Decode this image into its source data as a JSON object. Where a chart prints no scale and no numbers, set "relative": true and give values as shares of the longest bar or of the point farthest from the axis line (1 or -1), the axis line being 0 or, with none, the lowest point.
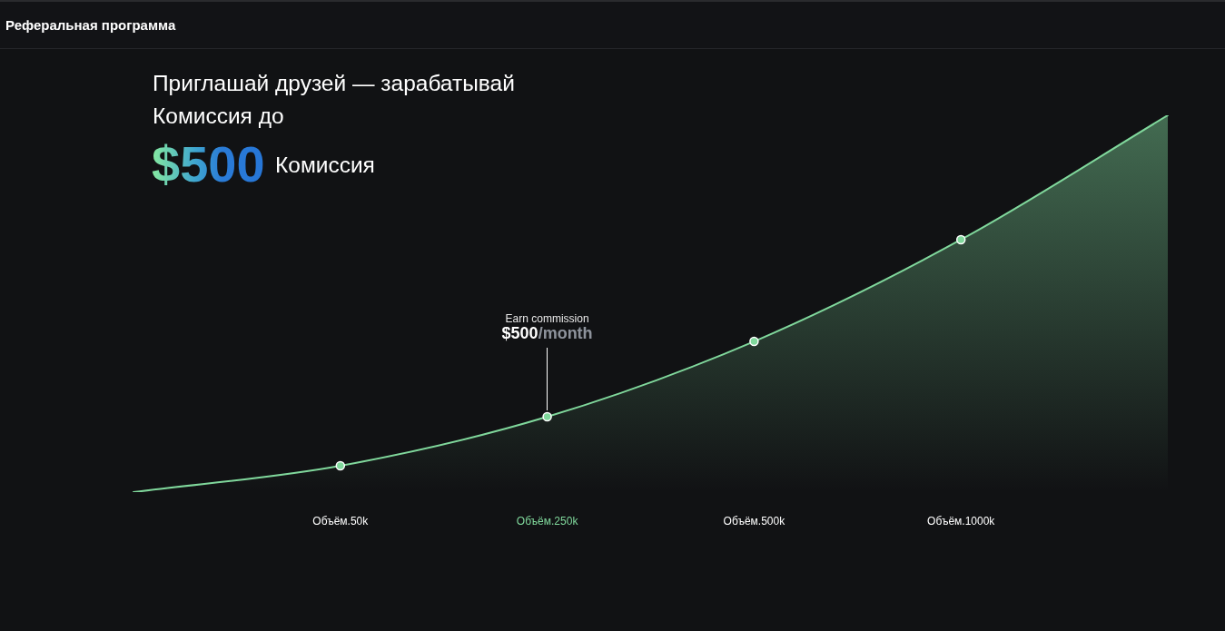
{
  "chart_data": {
    "type": "area",
    "title": "Реферальная программа",
    "subtitle": "Приглашай друзей — зарабатывай",
    "annotations": [
      "Комиссия до",
      "$500",
      "Комиссия",
      "Earn commission",
      {
        "text": "$500/month",
        "x": "Объём.250k",
        "y": 0.2
      }
    ],
    "categories": [
      null,
      "Объём.50k",
      "Объём.250k",
      "Объём.500k",
      "Объём.1000k",
      null
    ],
    "values": [
      0,
      0.07,
      0.2,
      0.4,
      0.67,
      1
    ],
    "color": "#80d89c",
    "relative": true,
    "grid": false,
    "marker": "circle",
    "line_style": "solid"
  }
}
